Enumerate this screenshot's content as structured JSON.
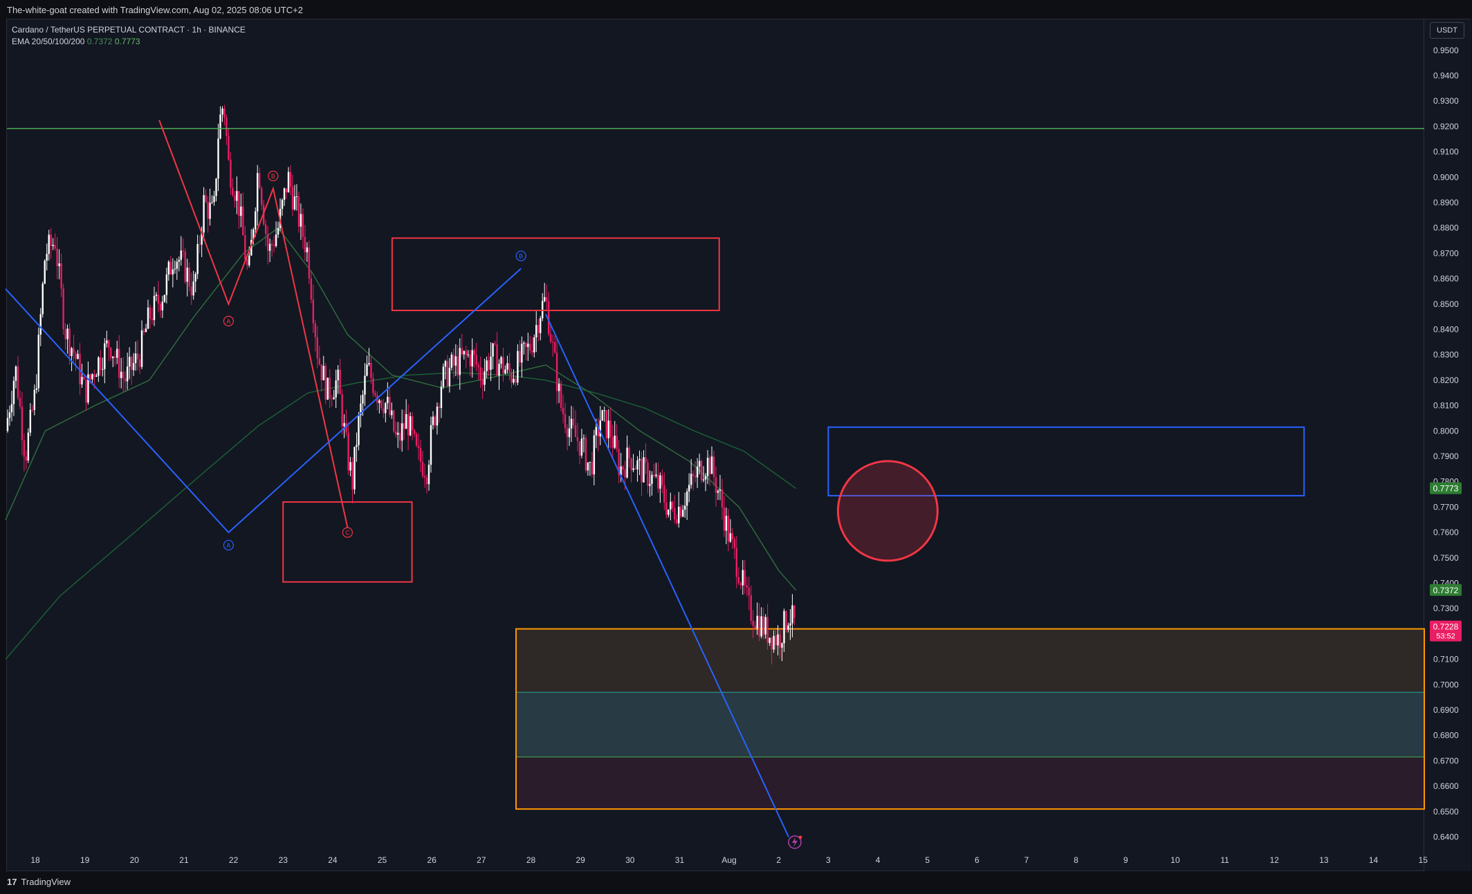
{
  "header": {
    "attribution": "The-white-goat created with TradingView.com, Aug 02, 2025 08:06 UTC+2"
  },
  "legend": {
    "title": "Cardano / TetherUS PERPETUAL CONTRACT · 1h · BINANCE",
    "ema_label": "EMA 20/50/100/200",
    "ema_value_1": "0.7372",
    "ema_value_2": "0.7773"
  },
  "currency_button": "USDT",
  "branding": {
    "logo_mark": "17",
    "name": "TradingView"
  },
  "price_tags": [
    {
      "label": "0.7773",
      "color": "#2e7d32"
    },
    {
      "label": "0.7372",
      "color": "#2e7d32"
    },
    {
      "label": "0.7228",
      "sub": "53:52",
      "color": "#e91e63"
    }
  ],
  "colors": {
    "up_candle": "#ffffff",
    "down_candle": "#e91e63",
    "ema_slow": "#1b5e35",
    "ema_fast": "#2e6b3b",
    "resistance_line": "#4caf50",
    "wave_red": "#f23645",
    "wave_blue": "#2962ff",
    "demand_zone_border": "#ff9800"
  },
  "chart_data": {
    "type": "candlestick",
    "symbol": "ADAUSDT.P",
    "timeframe": "1h",
    "y_ticks": [
      "0.9500",
      "0.9400",
      "0.9300",
      "0.9200",
      "0.9100",
      "0.9000",
      "0.8900",
      "0.8800",
      "0.8700",
      "0.8600",
      "0.8500",
      "0.8400",
      "0.8300",
      "0.8200",
      "0.8100",
      "0.8000",
      "0.7900",
      "0.7800",
      "0.7700",
      "0.7600",
      "0.7500",
      "0.7400",
      "0.7300",
      "0.7100",
      "0.7000",
      "0.6900",
      "0.6800",
      "0.6700",
      "0.6600",
      "0.6500",
      "0.6400"
    ],
    "ylim": [
      0.635,
      0.955
    ],
    "x_ticks": [
      {
        "label": "18",
        "day": 18
      },
      {
        "label": "19",
        "day": 19
      },
      {
        "label": "20",
        "day": 20
      },
      {
        "label": "21",
        "day": 21
      },
      {
        "label": "22",
        "day": 22
      },
      {
        "label": "23",
        "day": 23
      },
      {
        "label": "24",
        "day": 24
      },
      {
        "label": "25",
        "day": 25
      },
      {
        "label": "26",
        "day": 26
      },
      {
        "label": "27",
        "day": 27
      },
      {
        "label": "28",
        "day": 28
      },
      {
        "label": "29",
        "day": 29
      },
      {
        "label": "30",
        "day": 30
      },
      {
        "label": "31",
        "day": 31
      },
      {
        "label": "Aug",
        "day": 32
      },
      {
        "label": "2",
        "day": 33
      },
      {
        "label": "3",
        "day": 34
      },
      {
        "label": "4",
        "day": 35
      },
      {
        "label": "5",
        "day": 36
      },
      {
        "label": "6",
        "day": 37
      },
      {
        "label": "7",
        "day": 38
      },
      {
        "label": "8",
        "day": 39
      },
      {
        "label": "9",
        "day": 40
      },
      {
        "label": "10",
        "day": 41
      },
      {
        "label": "11",
        "day": 42
      },
      {
        "label": "12",
        "day": 43
      },
      {
        "label": "13",
        "day": 44
      },
      {
        "label": "14",
        "day": 45
      },
      {
        "label": "15",
        "day": 46
      }
    ],
    "price_path": [
      [
        17.4,
        0.8
      ],
      [
        17.6,
        0.825
      ],
      [
        17.8,
        0.79
      ],
      [
        18.0,
        0.815
      ],
      [
        18.2,
        0.87
      ],
      [
        18.4,
        0.875
      ],
      [
        18.6,
        0.84
      ],
      [
        18.8,
        0.83
      ],
      [
        19.0,
        0.815
      ],
      [
        19.2,
        0.825
      ],
      [
        19.5,
        0.835
      ],
      [
        19.8,
        0.82
      ],
      [
        20.1,
        0.83
      ],
      [
        20.3,
        0.845
      ],
      [
        20.6,
        0.855
      ],
      [
        20.8,
        0.87
      ],
      [
        21.0,
        0.865
      ],
      [
        21.2,
        0.855
      ],
      [
        21.4,
        0.89
      ],
      [
        21.6,
        0.885
      ],
      [
        21.7,
        0.92
      ],
      [
        21.8,
        0.93
      ],
      [
        21.9,
        0.905
      ],
      [
        22.1,
        0.89
      ],
      [
        22.3,
        0.86
      ],
      [
        22.5,
        0.905
      ],
      [
        22.7,
        0.87
      ],
      [
        22.9,
        0.88
      ],
      [
        23.1,
        0.9
      ],
      [
        23.3,
        0.885
      ],
      [
        23.5,
        0.87
      ],
      [
        23.7,
        0.83
      ],
      [
        23.9,
        0.815
      ],
      [
        24.1,
        0.82
      ],
      [
        24.3,
        0.79
      ],
      [
        24.4,
        0.78
      ],
      [
        24.5,
        0.8
      ],
      [
        24.7,
        0.825
      ],
      [
        24.9,
        0.815
      ],
      [
        25.1,
        0.81
      ],
      [
        25.3,
        0.795
      ],
      [
        25.5,
        0.805
      ],
      [
        25.7,
        0.79
      ],
      [
        25.9,
        0.785
      ],
      [
        26.0,
        0.8
      ],
      [
        26.2,
        0.82
      ],
      [
        26.4,
        0.825
      ],
      [
        26.6,
        0.828
      ],
      [
        26.8,
        0.83
      ],
      [
        27.0,
        0.822
      ],
      [
        27.2,
        0.83
      ],
      [
        27.4,
        0.826
      ],
      [
        27.6,
        0.822
      ],
      [
        27.8,
        0.828
      ],
      [
        28.0,
        0.834
      ],
      [
        28.2,
        0.848
      ],
      [
        28.3,
        0.852
      ],
      [
        28.4,
        0.838
      ],
      [
        28.6,
        0.81
      ],
      [
        28.8,
        0.8
      ],
      [
        29.0,
        0.795
      ],
      [
        29.2,
        0.785
      ],
      [
        29.4,
        0.805
      ],
      [
        29.6,
        0.8
      ],
      [
        29.8,
        0.785
      ],
      [
        30.0,
        0.79
      ],
      [
        30.2,
        0.785
      ],
      [
        30.4,
        0.782
      ],
      [
        30.6,
        0.778
      ],
      [
        30.8,
        0.768
      ],
      [
        31.0,
        0.77
      ],
      [
        31.2,
        0.778
      ],
      [
        31.4,
        0.785
      ],
      [
        31.6,
        0.788
      ],
      [
        31.8,
        0.775
      ],
      [
        32.0,
        0.758
      ],
      [
        32.2,
        0.745
      ],
      [
        32.4,
        0.73
      ],
      [
        32.6,
        0.725
      ],
      [
        32.8,
        0.72
      ],
      [
        33.0,
        0.718
      ],
      [
        33.2,
        0.728
      ],
      [
        33.35,
        0.7228
      ]
    ],
    "ema_fast_path": [
      [
        17.4,
        0.765
      ],
      [
        18.2,
        0.8
      ],
      [
        19.2,
        0.81
      ],
      [
        20.3,
        0.82
      ],
      [
        21.2,
        0.845
      ],
      [
        22.2,
        0.87
      ],
      [
        22.9,
        0.88
      ],
      [
        23.6,
        0.862
      ],
      [
        24.3,
        0.838
      ],
      [
        25.2,
        0.822
      ],
      [
        26.2,
        0.817
      ],
      [
        27.2,
        0.821
      ],
      [
        28.3,
        0.826
      ],
      [
        29.2,
        0.815
      ],
      [
        30.2,
        0.8
      ],
      [
        31.2,
        0.788
      ],
      [
        32.2,
        0.77
      ],
      [
        33.0,
        0.745
      ],
      [
        33.35,
        0.7372
      ]
    ],
    "ema_slow_path": [
      [
        17.4,
        0.71
      ],
      [
        18.5,
        0.735
      ],
      [
        20.0,
        0.76
      ],
      [
        21.3,
        0.782
      ],
      [
        22.5,
        0.802
      ],
      [
        23.5,
        0.815
      ],
      [
        24.5,
        0.819
      ],
      [
        25.5,
        0.822
      ],
      [
        26.5,
        0.823
      ],
      [
        27.5,
        0.822
      ],
      [
        28.3,
        0.82
      ],
      [
        29.3,
        0.815
      ],
      [
        30.3,
        0.809
      ],
      [
        31.3,
        0.8
      ],
      [
        32.3,
        0.792
      ],
      [
        33.35,
        0.7773
      ]
    ],
    "annotations": {
      "horizontal_line": 0.9192,
      "red_wave": [
        [
          20.5,
          0.9225
        ],
        [
          21.9,
          0.85
        ],
        [
          22.8,
          0.8955
        ],
        [
          24.3,
          0.762
        ]
      ],
      "red_wave_labels": [
        {
          "text": "A",
          "day": 21.9,
          "price": 0.8433
        },
        {
          "text": "B",
          "day": 22.8,
          "price": 0.9005
        },
        {
          "text": "C",
          "day": 24.3,
          "price": 0.76
        }
      ],
      "blue_wave": [
        [
          17.4,
          0.856
        ],
        [
          21.9,
          0.76
        ],
        [
          27.8,
          0.864
        ]
      ],
      "blue_trendline": [
        [
          28.3,
          0.846
        ],
        [
          33.2,
          0.64
        ]
      ],
      "blue_wave_labels": [
        {
          "text": "A",
          "day": 21.9,
          "price": 0.755
        },
        {
          "text": "B",
          "day": 27.8,
          "price": 0.869
        }
      ],
      "red_box_top": {
        "x0": 25.2,
        "x1": 31.8,
        "y_top": 0.876,
        "y_bottom": 0.8475
      },
      "red_box_bottom": {
        "x0": 23.0,
        "x1": 25.6,
        "y_top": 0.772,
        "y_bottom": 0.7405
      },
      "blue_box": {
        "x0": 34.0,
        "x1": 43.6,
        "y_top": 0.8015,
        "y_bottom": 0.7745
      },
      "red_circle": {
        "day": 35.2,
        "price": 0.7685
      },
      "demand_zone": {
        "x0": 27.7,
        "y_top": 0.722,
        "y_bottom": 0.651
      },
      "demand_zone_bands": [
        {
          "y_top": 0.722,
          "y_bottom": 0.697,
          "fill": "#2e2927"
        },
        {
          "y_top": 0.697,
          "y_bottom": 0.6715,
          "fill": "#283a43"
        },
        {
          "y_top": 0.6715,
          "y_bottom": 0.651,
          "fill": "#2a1c2b"
        }
      ],
      "demand_zone_midlines": [
        0.697,
        0.6715
      ]
    }
  }
}
